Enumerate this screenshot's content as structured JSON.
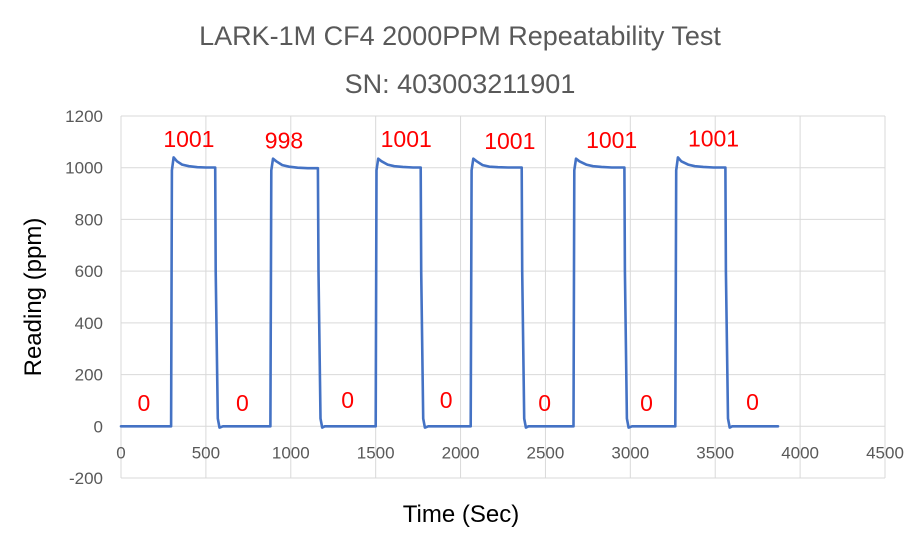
{
  "chart_data": {
    "type": "line",
    "title": "LARK-1M CF4 2000PPM Repeatability Test",
    "subtitle": "SN: 403003211901",
    "xlabel": "Time (Sec)",
    "ylabel": "Reading (ppm)",
    "xlim": [
      0,
      4500
    ],
    "ylim": [
      -200,
      1200
    ],
    "x_ticks": [
      0,
      500,
      1000,
      1500,
      2000,
      2500,
      3000,
      3500,
      4000,
      4500
    ],
    "y_ticks": [
      -200,
      0,
      200,
      400,
      600,
      800,
      1000,
      1200
    ],
    "grid": true,
    "legend": "none",
    "series_color": "#4472c4",
    "label_color": "#ff0000",
    "series": [
      {
        "x": [
          0,
          295,
          300,
          310,
          330,
          360,
          400,
          450,
          500,
          555,
          558,
          570,
          580,
          600,
          880,
          885,
          895,
          915,
          950,
          990,
          1040,
          1100,
          1160,
          1163,
          1175,
          1185,
          1200,
          1500,
          1505,
          1515,
          1535,
          1570,
          1610,
          1660,
          1720,
          1765,
          1768,
          1780,
          1790,
          1810,
          2060,
          2065,
          2075,
          2095,
          2130,
          2170,
          2220,
          2280,
          2360,
          2363,
          2375,
          2385,
          2400,
          2665,
          2670,
          2680,
          2700,
          2740,
          2780,
          2830,
          2890,
          2965,
          2968,
          2980,
          2990,
          3010,
          3265,
          3270,
          3280,
          3300,
          3340,
          3380,
          3430,
          3490,
          3560,
          3563,
          3575,
          3585,
          3600,
          3870
        ],
        "y": [
          0,
          0,
          990,
          1040,
          1025,
          1012,
          1006,
          1002,
          1001,
          1001,
          600,
          30,
          -5,
          0,
          0,
          990,
          1035,
          1025,
          1010,
          1004,
          1000,
          998,
          998,
          600,
          30,
          -5,
          0,
          0,
          990,
          1035,
          1025,
          1012,
          1006,
          1003,
          1001,
          1001,
          600,
          30,
          -5,
          0,
          0,
          990,
          1035,
          1025,
          1010,
          1004,
          1002,
          1001,
          1001,
          600,
          30,
          -5,
          0,
          0,
          990,
          1035,
          1025,
          1012,
          1006,
          1003,
          1001,
          1001,
          600,
          30,
          -5,
          0,
          0,
          990,
          1040,
          1025,
          1012,
          1006,
          1003,
          1001,
          1001,
          600,
          30,
          -5,
          0,
          0
        ]
      }
    ],
    "annotations": [
      {
        "text": "1001",
        "x": 400,
        "y": 1080
      },
      {
        "text": "998",
        "x": 960,
        "y": 1074
      },
      {
        "text": "1001",
        "x": 1680,
        "y": 1080
      },
      {
        "text": "1001",
        "x": 2290,
        "y": 1072
      },
      {
        "text": "1001",
        "x": 2890,
        "y": 1077
      },
      {
        "text": "1001",
        "x": 3490,
        "y": 1082
      },
      {
        "text": "0",
        "x": 135,
        "y": 60
      },
      {
        "text": "0",
        "x": 715,
        "y": 60
      },
      {
        "text": "0",
        "x": 1335,
        "y": 70
      },
      {
        "text": "0",
        "x": 1915,
        "y": 70
      },
      {
        "text": "0",
        "x": 2495,
        "y": 60
      },
      {
        "text": "0",
        "x": 3095,
        "y": 60
      },
      {
        "text": "0",
        "x": 3720,
        "y": 63
      }
    ]
  }
}
